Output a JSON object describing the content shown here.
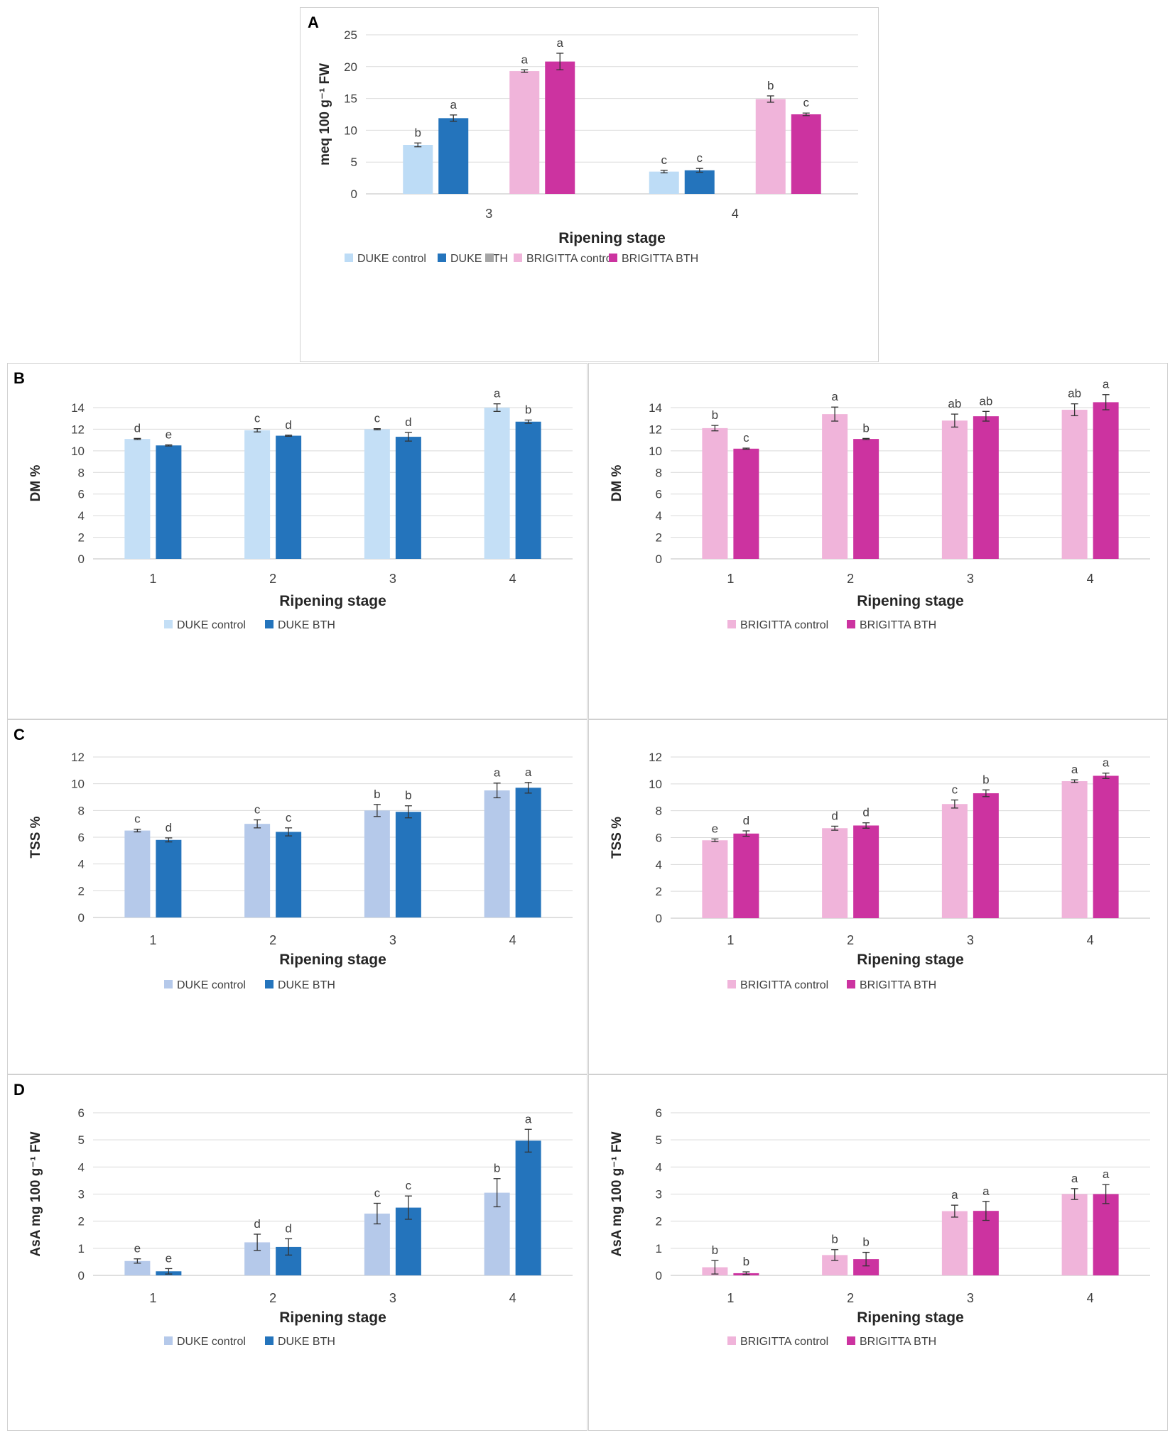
{
  "panel_letters": {
    "a": "A",
    "b": "B",
    "c": "C",
    "d": "D"
  },
  "x_axis_label": "Ripening stage",
  "colors": {
    "duke_control_a": "#bddcf6",
    "duke_control_light": "#c4dff6",
    "duke_control_tss": "#b5c9ea",
    "duke_bth": "#2474bc",
    "brigitta_control": "#f0b4da",
    "brigitta_bth": "#cc33a0",
    "legend_gray": "#a6a6a6",
    "grid": "#d9d9d9",
    "axis": "#bfbfbf",
    "text": "#404040"
  },
  "chart_data": [
    {
      "id": "A",
      "type": "bar",
      "title": "",
      "xlabel": "Ripening stage",
      "ylabel": "meq 100 g⁻¹ FW",
      "ylim": [
        0,
        25
      ],
      "yticks": [
        0,
        5,
        10,
        15,
        20,
        25
      ],
      "categories": [
        "3",
        "4"
      ],
      "legend": [
        "DUKE control",
        "DUKE BTH",
        "",
        "BRIGITTA control",
        "BRIGITTA BTH"
      ],
      "legend_position": "bottom",
      "series": [
        {
          "name": "DUKE control",
          "values": [
            7.7,
            3.5
          ],
          "errors": [
            0.3,
            0.2
          ],
          "letters": [
            "b",
            "c"
          ],
          "color": "duke_control_a"
        },
        {
          "name": "DUKE BTH",
          "values": [
            11.9,
            3.7
          ],
          "errors": [
            0.5,
            0.3
          ],
          "letters": [
            "a",
            "c"
          ],
          "color": "duke_bth"
        },
        {
          "name": "",
          "values": [
            0,
            0
          ],
          "errors": [
            0,
            0
          ],
          "letters": [
            "",
            ""
          ],
          "color": "legend_gray"
        },
        {
          "name": "BRIGITTA control",
          "values": [
            19.3,
            14.9
          ],
          "errors": [
            0.2,
            0.5
          ],
          "letters": [
            "a",
            "b"
          ],
          "color": "brigitta_control"
        },
        {
          "name": "BRIGITTA BTH",
          "values": [
            20.8,
            12.5
          ],
          "errors": [
            1.3,
            0.2
          ],
          "letters": [
            "a",
            "c"
          ],
          "color": "brigitta_bth"
        }
      ]
    },
    {
      "id": "B-left",
      "type": "bar",
      "title": "",
      "xlabel": "Ripening stage",
      "ylabel": "DM %",
      "ylim": [
        0,
        14
      ],
      "yticks": [
        0,
        2,
        4,
        6,
        8,
        10,
        12,
        14
      ],
      "categories": [
        "1",
        "2",
        "3",
        "4"
      ],
      "legend": [
        "DUKE control",
        "DUKE BTH"
      ],
      "series": [
        {
          "name": "DUKE control",
          "values": [
            11.1,
            11.9,
            12.0,
            14.0
          ],
          "errors": [
            0.05,
            0.15,
            0.05,
            0.35
          ],
          "letters": [
            "d",
            "c",
            "c",
            "a"
          ],
          "color": "duke_control_light"
        },
        {
          "name": "DUKE BTH",
          "values": [
            10.5,
            11.4,
            11.3,
            12.7
          ],
          "errors": [
            0.05,
            0.05,
            0.4,
            0.15
          ],
          "letters": [
            "e",
            "d",
            "d",
            "b"
          ],
          "color": "duke_bth"
        }
      ]
    },
    {
      "id": "B-right",
      "type": "bar",
      "title": "",
      "xlabel": "Ripening stage",
      "ylabel": "DM %",
      "ylim": [
        0,
        14
      ],
      "yticks": [
        0,
        2,
        4,
        6,
        8,
        10,
        12,
        14
      ],
      "categories": [
        "1",
        "2",
        "3",
        "4"
      ],
      "legend": [
        "BRIGITTA control",
        "BRIGITTA BTH"
      ],
      "series": [
        {
          "name": "BRIGITTA control",
          "values": [
            12.1,
            13.4,
            12.8,
            13.8
          ],
          "errors": [
            0.25,
            0.65,
            0.6,
            0.55
          ],
          "letters": [
            "b",
            "a",
            "ab",
            "ab"
          ],
          "color": "brigitta_control"
        },
        {
          "name": "BRIGITTA BTH",
          "values": [
            10.2,
            11.1,
            13.2,
            14.5
          ],
          "errors": [
            0.05,
            0.05,
            0.45,
            0.7
          ],
          "letters": [
            "c",
            "b",
            "ab",
            "a"
          ],
          "color": "brigitta_bth"
        }
      ]
    },
    {
      "id": "C-left",
      "type": "bar",
      "title": "",
      "xlabel": "Ripening stage",
      "ylabel": "TSS %",
      "ylim": [
        0,
        12
      ],
      "yticks": [
        0,
        2,
        4,
        6,
        8,
        10,
        12
      ],
      "categories": [
        "1",
        "2",
        "3",
        "4"
      ],
      "legend": [
        "DUKE control",
        "DUKE BTH"
      ],
      "series": [
        {
          "name": "DUKE control",
          "values": [
            6.5,
            7.0,
            8.0,
            9.5
          ],
          "errors": [
            0.1,
            0.3,
            0.45,
            0.55
          ],
          "letters": [
            "c",
            "c",
            "b",
            "a"
          ],
          "color": "duke_control_tss"
        },
        {
          "name": "DUKE BTH",
          "values": [
            5.8,
            6.4,
            7.9,
            9.7
          ],
          "errors": [
            0.15,
            0.3,
            0.45,
            0.4
          ],
          "letters": [
            "d",
            "c",
            "b",
            "a"
          ],
          "color": "duke_bth"
        }
      ]
    },
    {
      "id": "C-right",
      "type": "bar",
      "title": "",
      "xlabel": "Ripening stage",
      "ylabel": "TSS %",
      "ylim": [
        0,
        12
      ],
      "yticks": [
        0,
        2,
        4,
        6,
        8,
        10,
        12
      ],
      "categories": [
        "1",
        "2",
        "3",
        "4"
      ],
      "legend": [
        "BRIGITTA control",
        "BRIGITTA BTH"
      ],
      "series": [
        {
          "name": "BRIGITTA control",
          "values": [
            5.8,
            6.7,
            8.5,
            10.2
          ],
          "errors": [
            0.1,
            0.15,
            0.3,
            0.1
          ],
          "letters": [
            "e",
            "d",
            "c",
            "a"
          ],
          "color": "brigitta_control"
        },
        {
          "name": "BRIGITTA BTH",
          "values": [
            6.3,
            6.9,
            9.3,
            10.6
          ],
          "errors": [
            0.2,
            0.2,
            0.25,
            0.2
          ],
          "letters": [
            "d",
            "d",
            "b",
            "a"
          ],
          "color": "brigitta_bth"
        }
      ]
    },
    {
      "id": "D-left",
      "type": "bar",
      "title": "",
      "xlabel": "Ripening stage",
      "ylabel": "AsA mg 100 g⁻¹ FW",
      "ylim": [
        0,
        6
      ],
      "yticks": [
        0,
        1,
        2,
        3,
        4,
        5,
        6
      ],
      "categories": [
        "1",
        "2",
        "3",
        "4"
      ],
      "legend": [
        "DUKE control",
        "DUKE BTH"
      ],
      "series": [
        {
          "name": "DUKE control",
          "values": [
            0.53,
            1.22,
            2.28,
            3.05
          ],
          "errors": [
            0.08,
            0.3,
            0.38,
            0.52
          ],
          "letters": [
            "e",
            "d",
            "c",
            "b"
          ],
          "color": "duke_control_tss"
        },
        {
          "name": "DUKE BTH",
          "values": [
            0.15,
            1.05,
            2.5,
            4.97
          ],
          "errors": [
            0.1,
            0.3,
            0.43,
            0.42
          ],
          "letters": [
            "e",
            "d",
            "c",
            "a"
          ],
          "color": "duke_bth"
        }
      ]
    },
    {
      "id": "D-right",
      "type": "bar",
      "title": "",
      "xlabel": "Ripening stage",
      "ylabel": "AsA mg 100 g⁻¹ FW",
      "ylim": [
        0,
        6
      ],
      "yticks": [
        0,
        1,
        2,
        3,
        4,
        5,
        6
      ],
      "categories": [
        "1",
        "2",
        "3",
        "4"
      ],
      "legend": [
        "BRIGITTA control",
        "BRIGITTA BTH"
      ],
      "series": [
        {
          "name": "BRIGITTA control",
          "values": [
            0.3,
            0.75,
            2.37,
            3.0
          ],
          "errors": [
            0.25,
            0.2,
            0.22,
            0.2
          ],
          "letters": [
            "b",
            "b",
            "a",
            "a"
          ],
          "color": "brigitta_control"
        },
        {
          "name": "BRIGITTA BTH",
          "values": [
            0.08,
            0.6,
            2.38,
            3.0
          ],
          "errors": [
            0.05,
            0.25,
            0.35,
            0.35
          ],
          "letters": [
            "b",
            "b",
            "a",
            "a"
          ],
          "color": "brigitta_bth"
        }
      ]
    }
  ]
}
